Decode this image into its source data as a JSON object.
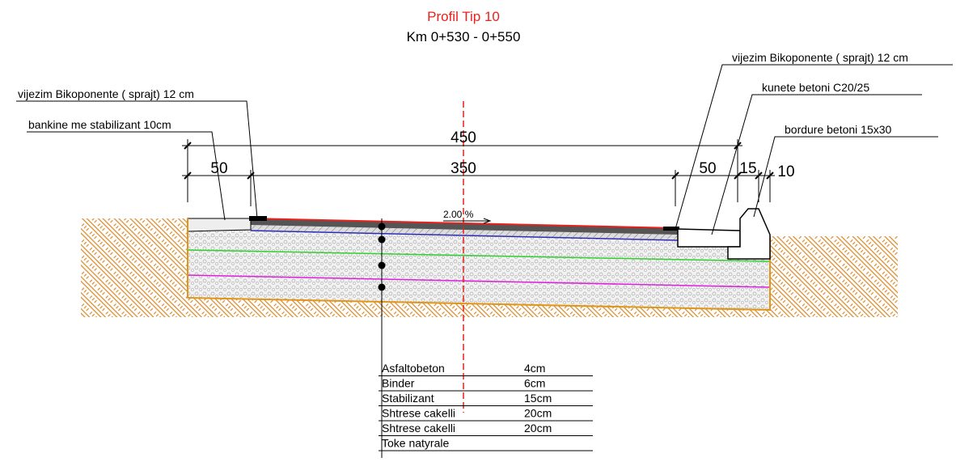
{
  "header": {
    "title": "Profil Tip 10",
    "subtitle": "Km 0+530 - 0+550"
  },
  "callouts": [
    "vijezim Bikoponente ( sprajt)  12 cm",
    "bankine me stabilizant 10cm",
    "vijezim Bikoponente ( sprajt)  12 cm",
    "kunete betoni C20/25",
    "bordure betoni 15x30"
  ],
  "dimensions": {
    "total": "450",
    "parts": [
      "50",
      "350",
      "50",
      "15",
      "10"
    ]
  },
  "slope": "2.00 %",
  "layers": {
    "rows": [
      [
        "Asfaltobeton",
        "4cm"
      ],
      [
        "Binder",
        "6cm"
      ],
      [
        "Stabilizant",
        "15cm"
      ],
      [
        "Shtrese cakelli",
        "20cm"
      ],
      [
        "Shtrese cakelli",
        "20cm"
      ],
      [
        "Toke natyrale",
        ""
      ]
    ]
  }
}
